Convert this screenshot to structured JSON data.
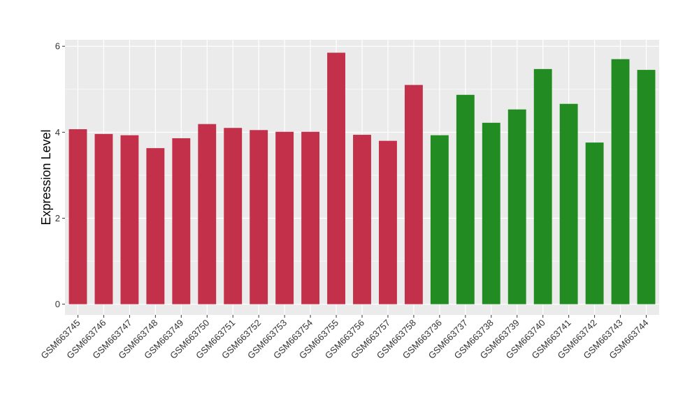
{
  "chart_data": {
    "type": "bar",
    "ylabel": "Expression Level",
    "xlabel": "",
    "ylim": [
      -0.25,
      6.15
    ],
    "yticks": [
      0,
      2,
      4,
      6
    ],
    "grid": true,
    "categories": [
      "GSM663745",
      "GSM663746",
      "GSM663747",
      "GSM663748",
      "GSM663749",
      "GSM663750",
      "GSM663751",
      "GSM663752",
      "GSM663753",
      "GSM663754",
      "GSM663755",
      "GSM663756",
      "GSM663757",
      "GSM663758",
      "GSM663736",
      "GSM663737",
      "GSM663738",
      "GSM663739",
      "GSM663740",
      "GSM663741",
      "GSM663742",
      "GSM663743",
      "GSM663744"
    ],
    "values": [
      4.07,
      3.96,
      3.93,
      3.63,
      3.86,
      4.19,
      4.1,
      4.05,
      4.01,
      4.01,
      5.85,
      3.94,
      3.8,
      5.1,
      3.93,
      4.87,
      4.22,
      4.53,
      5.47,
      4.66,
      3.76,
      5.7,
      5.45
    ],
    "bar_colors": [
      "#c3304a",
      "#c3304a",
      "#c3304a",
      "#c3304a",
      "#c3304a",
      "#c3304a",
      "#c3304a",
      "#c3304a",
      "#c3304a",
      "#c3304a",
      "#c3304a",
      "#c3304a",
      "#c3304a",
      "#c3304a",
      "#228b22",
      "#228b22",
      "#228b22",
      "#228b22",
      "#228b22",
      "#228b22",
      "#228b22",
      "#228b22",
      "#228b22"
    ],
    "panel_background": "#ebebeb",
    "grid_color": "#ffffff"
  }
}
